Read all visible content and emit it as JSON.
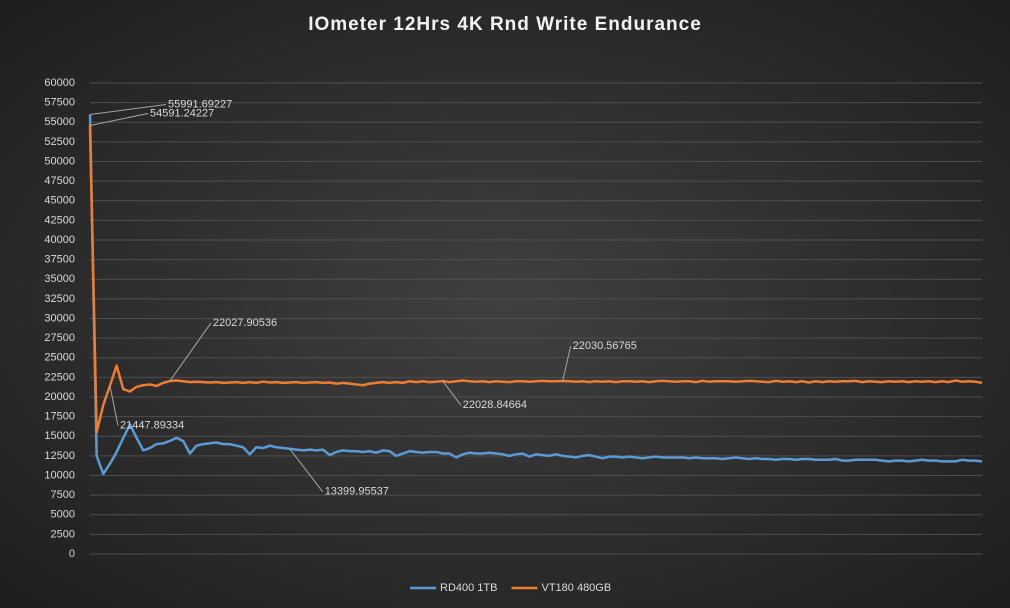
{
  "chart_data": {
    "type": "line",
    "title": "IOmeter 12Hrs 4K Rnd Write Endurance",
    "ylim": [
      0,
      60000
    ],
    "yticks": [
      0,
      2500,
      5000,
      7500,
      10000,
      12500,
      15000,
      17500,
      20000,
      22500,
      25000,
      27500,
      30000,
      32500,
      35000,
      37500,
      40000,
      42500,
      45000,
      47500,
      50000,
      52500,
      55000,
      57500,
      60000
    ],
    "grid": true,
    "legend": "bottom",
    "series": [
      {
        "name": "RD400 1TB",
        "color": "#5b9bd5",
        "values": [
          55991.69227,
          12500,
          10200,
          11500,
          13000,
          14800,
          16500,
          14800,
          13200,
          13500,
          14000,
          14100,
          14400,
          14800,
          14400,
          12800,
          13800,
          14000,
          14100,
          14200,
          14000,
          14000,
          13800,
          13600,
          12700,
          13600,
          13500,
          13800,
          13600,
          13500,
          13399.95537,
          13300,
          13200,
          13300,
          13200,
          13300,
          12600,
          13000,
          13200,
          13100,
          13100,
          13000,
          13100,
          12900,
          13200,
          13100,
          12500,
          12800,
          13100,
          13000,
          12900,
          13000,
          13000,
          12800,
          12800,
          12300,
          12700,
          12900,
          12800,
          12800,
          12900,
          12800,
          12700,
          12500,
          12700,
          12800,
          12400,
          12700,
          12600,
          12500,
          12700,
          12500,
          12400,
          12300,
          12500,
          12600,
          12400,
          12200,
          12400,
          12400,
          12300,
          12400,
          12300,
          12200,
          12300,
          12400,
          12300,
          12300,
          12300,
          12300,
          12200,
          12300,
          12200,
          12200,
          12200,
          12100,
          12200,
          12300,
          12200,
          12100,
          12200,
          12100,
          12100,
          12000,
          12100,
          12100,
          12000,
          12100,
          12100,
          12000,
          12000,
          12000,
          12100,
          11900,
          11900,
          12000,
          12000,
          12000,
          12000,
          11900,
          11800,
          11900,
          11900,
          11800,
          11900,
          12000,
          11900,
          11900,
          11800,
          11800,
          11800,
          12000,
          11900,
          11900,
          11800
        ],
        "value_labels": [
          "55991.69227",
          null,
          null,
          null,
          null,
          null,
          null,
          null,
          null,
          null,
          null,
          null,
          null,
          null,
          null,
          null,
          null,
          null,
          null,
          null,
          null,
          null,
          null,
          null,
          null,
          null,
          null,
          null,
          null,
          null,
          "13399.95537",
          null,
          null,
          null,
          null,
          null,
          null,
          null,
          null,
          null,
          null,
          null,
          null,
          null,
          null,
          null,
          null,
          null,
          null,
          null,
          null,
          null,
          null,
          null,
          null,
          null,
          null,
          null,
          null,
          null,
          null,
          null,
          null,
          null,
          null,
          null,
          null,
          null,
          null,
          null,
          null,
          null,
          null,
          null,
          null,
          null,
          null,
          null,
          null,
          null,
          null,
          null,
          null,
          null,
          null,
          null,
          null,
          null,
          null,
          null,
          null,
          null,
          null,
          null,
          null,
          null,
          null,
          null,
          null,
          null,
          null,
          null,
          null,
          null,
          null,
          null,
          null,
          null,
          null,
          null,
          null,
          null,
          null,
          null,
          null,
          null,
          null,
          null,
          null,
          null,
          null,
          null,
          null,
          null,
          null,
          null,
          null,
          null,
          null,
          null,
          null,
          null,
          null,
          null,
          null
        ]
      },
      {
        "name": "VT180 480GB",
        "color": "#ed7d31",
        "values": [
          54591.24227,
          15500,
          19000,
          21447.89334,
          24000,
          21000,
          20700,
          21300,
          21500,
          21600,
          21400,
          21800,
          22027.90536,
          22100,
          22000,
          21900,
          21950,
          21900,
          21850,
          21900,
          21800,
          21850,
          21900,
          21800,
          21900,
          21800,
          21950,
          21850,
          21900,
          21800,
          21850,
          21900,
          21800,
          21850,
          21900,
          21800,
          21850,
          21700,
          21800,
          21700,
          21600,
          21500,
          21700,
          21800,
          21900,
          21800,
          21900,
          21800,
          22000,
          21900,
          22000,
          21900,
          21950,
          22028.84664,
          21900,
          22000,
          22100,
          22000,
          21950,
          22000,
          21900,
          22000,
          21950,
          21900,
          22000,
          22000,
          21950,
          22000,
          22050,
          22000,
          22000,
          22030.56765,
          22000,
          21950,
          22000,
          21900,
          22000,
          21950,
          22000,
          21900,
          22000,
          22000,
          21950,
          22000,
          21900,
          22000,
          22050,
          22000,
          21950,
          22000,
          22000,
          21900,
          22050,
          21950,
          22000,
          22000,
          22000,
          21950,
          22000,
          22050,
          22000,
          21950,
          21900,
          22050,
          21950,
          22000,
          21900,
          22000,
          21850,
          22000,
          21900,
          22000,
          21950,
          22000,
          22000,
          22050,
          21900,
          22000,
          21950,
          21900,
          22000,
          21950,
          22000,
          21900,
          22000,
          21950,
          22000,
          21900,
          22000,
          21900,
          22100,
          21950,
          22000,
          21950,
          21800
        ],
        "value_labels": [
          "54591.24227",
          null,
          null,
          "21447.89334",
          null,
          null,
          null,
          null,
          null,
          null,
          null,
          null,
          "22027.90536",
          null,
          null,
          null,
          null,
          null,
          null,
          null,
          null,
          null,
          null,
          null,
          null,
          null,
          null,
          null,
          null,
          null,
          null,
          null,
          null,
          null,
          null,
          null,
          null,
          null,
          null,
          null,
          null,
          null,
          null,
          null,
          null,
          null,
          null,
          null,
          null,
          null,
          null,
          null,
          null,
          "22028.84664",
          null,
          null,
          null,
          null,
          null,
          null,
          null,
          null,
          null,
          null,
          null,
          null,
          null,
          null,
          null,
          null,
          null,
          "22030.56765",
          null,
          null,
          null,
          null,
          null,
          null,
          null,
          null,
          null,
          null,
          null,
          null,
          null,
          null,
          null,
          null,
          null,
          null,
          null,
          null,
          null,
          null,
          null,
          null,
          null,
          null,
          null,
          null,
          null,
          null,
          null,
          null,
          null,
          null,
          null,
          null,
          null,
          null,
          null,
          null,
          null,
          null,
          null,
          null,
          null,
          null,
          null,
          null,
          null,
          null,
          null,
          null,
          null,
          null,
          null,
          null,
          null,
          null,
          null,
          null,
          null,
          null,
          null
        ]
      }
    ]
  }
}
